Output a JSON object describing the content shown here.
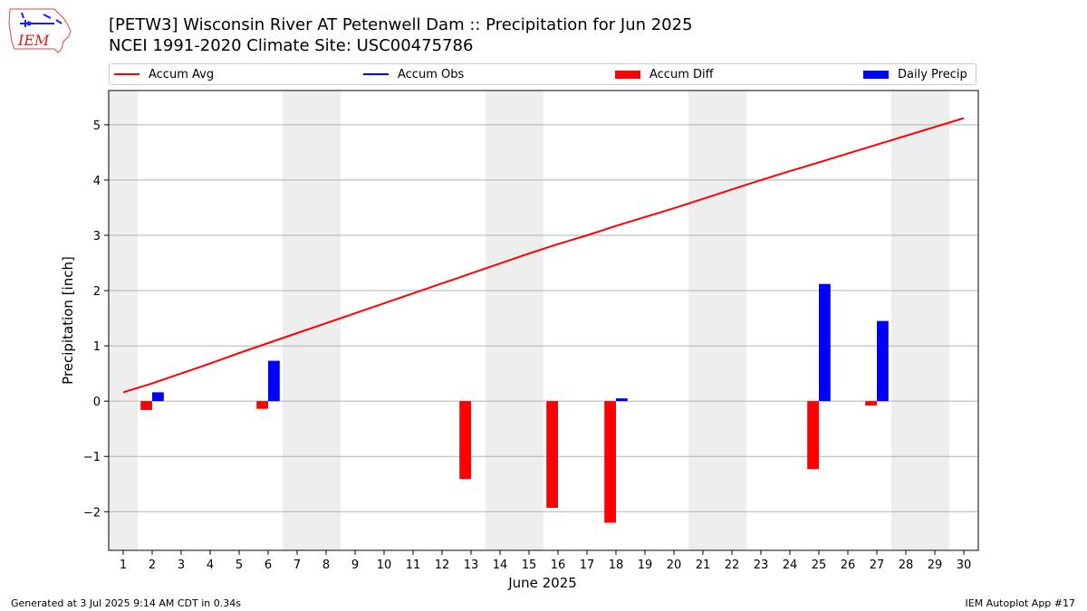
{
  "header": {
    "logo_text": "IEM",
    "title_line1": "[PETW3] Wisconsin River  AT Petenwell Dam :: Precipitation for Jun 2025",
    "title_line2": "NCEI 1991-2020 Climate Site: USC00475786"
  },
  "legend": {
    "accum_avg": "Accum Avg",
    "accum_obs": "Accum Obs",
    "accum_diff": "Accum Diff",
    "daily_precip": "Daily Precip"
  },
  "footer": {
    "left": "Generated at 3 Jul 2025 9:14 AM CDT in 0.34s",
    "right": "IEM Autoplot App #17"
  },
  "colors": {
    "accum_avg": "#ff0000",
    "accum_obs": "#0000ff",
    "accum_diff": "#ff0000",
    "daily_precip": "#0000ff",
    "weekend_shade": "#eeeeee",
    "grid": "#b0b0b0"
  },
  "chart_data": {
    "type": "bar",
    "xlabel": "June 2025",
    "ylabel": "Precipitation [inch]",
    "xlim": [
      0.5,
      30.5
    ],
    "ylim": [
      -2.7,
      5.62
    ],
    "yticks": [
      -2,
      -1,
      0,
      1,
      2,
      3,
      4,
      5
    ],
    "ytick_labels": [
      "−2",
      "−1",
      "0",
      "1",
      "2",
      "3",
      "4",
      "5"
    ],
    "x": [
      1,
      2,
      3,
      4,
      5,
      6,
      7,
      8,
      9,
      10,
      11,
      12,
      13,
      14,
      15,
      16,
      17,
      18,
      19,
      20,
      21,
      22,
      23,
      24,
      25,
      26,
      27,
      28,
      29,
      30
    ],
    "grid": "horizontal",
    "legend_position": "top",
    "weekend_days": [
      1,
      7,
      8,
      14,
      15,
      21,
      22,
      28,
      29
    ],
    "series": [
      {
        "name": "Accum Avg",
        "type": "line",
        "values": [
          0.16,
          0.32,
          0.5,
          0.68,
          0.87,
          1.05,
          1.23,
          1.41,
          1.59,
          1.77,
          1.95,
          2.13,
          2.31,
          2.49,
          2.67,
          2.84,
          3.0,
          3.17,
          3.33,
          3.49,
          3.66,
          3.83,
          4.0,
          4.16,
          4.32,
          4.48,
          4.64,
          4.8,
          4.96,
          5.12
        ]
      },
      {
        "name": "Daily Precip",
        "type": "bar",
        "values": [
          0,
          0.16,
          0,
          0,
          0,
          0.73,
          0,
          0,
          0,
          0,
          0,
          0,
          0,
          0,
          0,
          0,
          0,
          0.05,
          0,
          0,
          0,
          0,
          0,
          0,
          2.12,
          0,
          1.45,
          0,
          0,
          0
        ]
      },
      {
        "name": "Accum Diff",
        "type": "bar",
        "values": [
          0,
          -0.16,
          0,
          0,
          0,
          -0.14,
          0,
          0,
          0,
          0,
          0,
          0,
          -1.41,
          0,
          0,
          -1.93,
          0,
          -2.2,
          0,
          0,
          0,
          0,
          0,
          0,
          -1.23,
          0,
          -0.08,
          0,
          0,
          0
        ]
      }
    ]
  }
}
